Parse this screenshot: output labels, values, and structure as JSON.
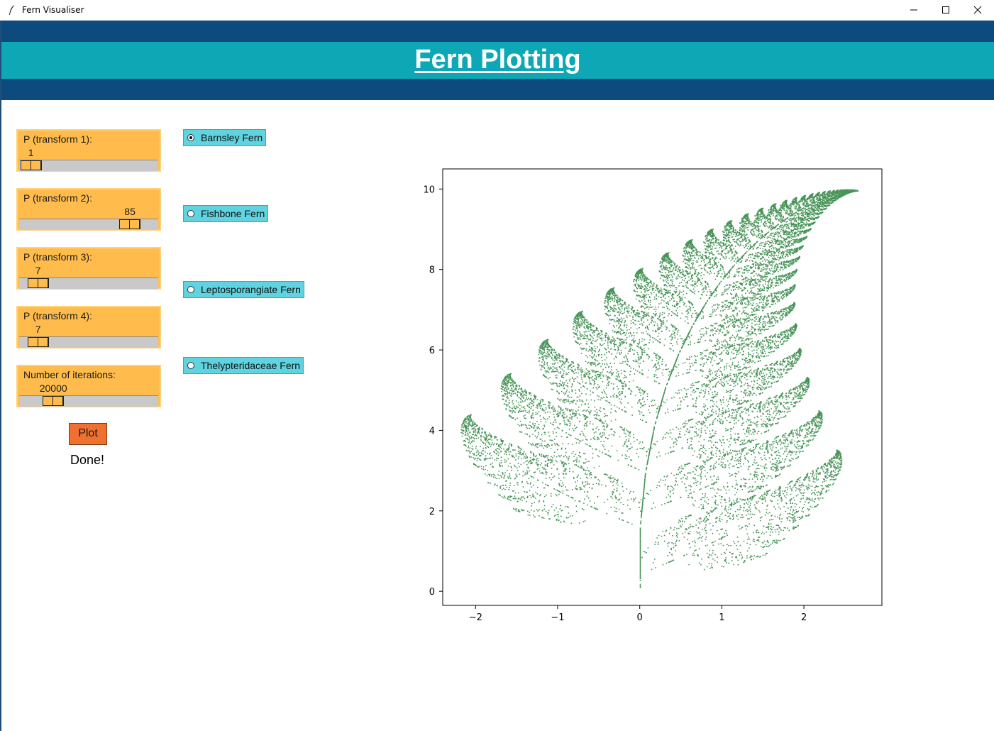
{
  "window": {
    "title": "Fern Visualiser",
    "icon": "feather-icon"
  },
  "header": {
    "title": "Fern Plotting"
  },
  "controls": {
    "sliders": [
      {
        "label": "P (transform 1):",
        "value": "1",
        "min": 0,
        "max": 100,
        "fraction": 0.01
      },
      {
        "label": "P (transform 2):",
        "value": "85",
        "min": 0,
        "max": 100,
        "fraction": 0.85
      },
      {
        "label": "P (transform 3):",
        "value": "7",
        "min": 0,
        "max": 100,
        "fraction": 0.07
      },
      {
        "label": "P (transform 4):",
        "value": "7",
        "min": 0,
        "max": 100,
        "fraction": 0.07
      },
      {
        "label": "Number of iterations:",
        "value": "20000",
        "min": 0,
        "max": 100000,
        "fraction": 0.2
      }
    ],
    "plot_button": "Plot",
    "status": "Done!"
  },
  "fern_types": {
    "selected": "Barnsley Fern",
    "options": [
      "Barnsley Fern",
      "Fishbone Fern",
      "Leptosporangiate Fern",
      "Thelypteridaceae Fern"
    ]
  },
  "colors": {
    "header_dark": "#0d4a7e",
    "header_teal": "#0ea7b5",
    "slider_bg": "#ffbc4c",
    "radio_bg": "#5fd3e0",
    "plot_button": "#f07030",
    "points": "#3e8e4f"
  },
  "chart_data": {
    "type": "scatter",
    "title": "",
    "xlabel": "",
    "ylabel": "",
    "xlim": [
      -2.4,
      2.95
    ],
    "ylim": [
      -0.35,
      10.5
    ],
    "x_ticks": [
      "−2",
      "−1",
      "0",
      "1",
      "2"
    ],
    "x_tick_values": [
      -2,
      -1,
      0,
      1,
      2
    ],
    "y_ticks": [
      "0",
      "2",
      "4",
      "6",
      "8",
      "10"
    ],
    "y_tick_values": [
      0,
      2,
      4,
      6,
      8,
      10
    ],
    "grid": false,
    "series": [
      {
        "generator": "barnsley-ifs",
        "points": 20000,
        "probabilities": [
          0.01,
          0.85,
          0.07,
          0.07
        ],
        "color": "#3e8e4f"
      }
    ]
  }
}
